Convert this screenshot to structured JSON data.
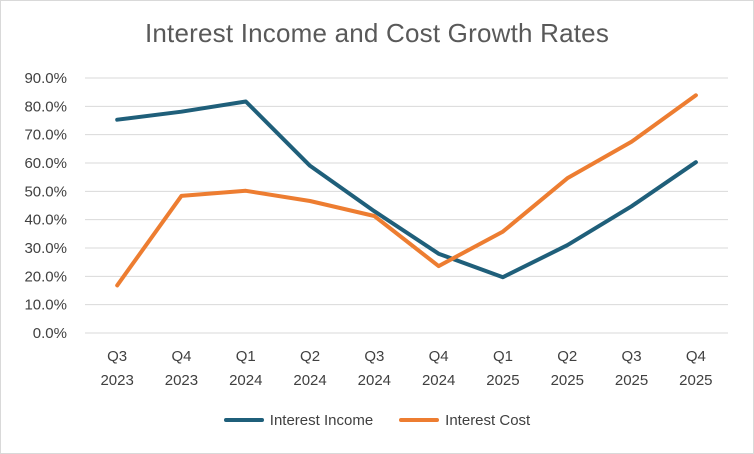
{
  "chart_data": {
    "type": "line",
    "title": "Interest Income and Cost Growth Rates",
    "categories": [
      [
        "Q3",
        "2023"
      ],
      [
        "Q4",
        "2023"
      ],
      [
        "Q1",
        "2024"
      ],
      [
        "Q2",
        "2024"
      ],
      [
        "Q3",
        "2024"
      ],
      [
        "Q4",
        "2024"
      ],
      [
        "Q1",
        "2025"
      ],
      [
        "Q2",
        "2025"
      ],
      [
        "Q3",
        "2025"
      ],
      [
        "Q4",
        "2025"
      ]
    ],
    "ylim": [
      0,
      90
    ],
    "yticks": [
      0,
      10,
      20,
      30,
      40,
      50,
      60,
      70,
      80,
      90
    ],
    "ytick_labels": [
      "0.0%",
      "10.0%",
      "20.0%",
      "30.0%",
      "40.0%",
      "50.0%",
      "60.0%",
      "70.0%",
      "80.0%",
      "90.0%"
    ],
    "grid": true,
    "legend_position": "bottom",
    "series": [
      {
        "name": "Interest Income",
        "color": "#1f5f7a",
        "values": [
          75.3,
          78.1,
          81.7,
          59.0,
          43.0,
          28.0,
          19.7,
          31.0,
          44.7,
          60.3
        ]
      },
      {
        "name": "Interest Cost",
        "color": "#ed7d31",
        "values": [
          16.8,
          48.4,
          50.2,
          46.6,
          41.3,
          23.6,
          35.8,
          54.6,
          67.5,
          83.9
        ]
      }
    ]
  }
}
